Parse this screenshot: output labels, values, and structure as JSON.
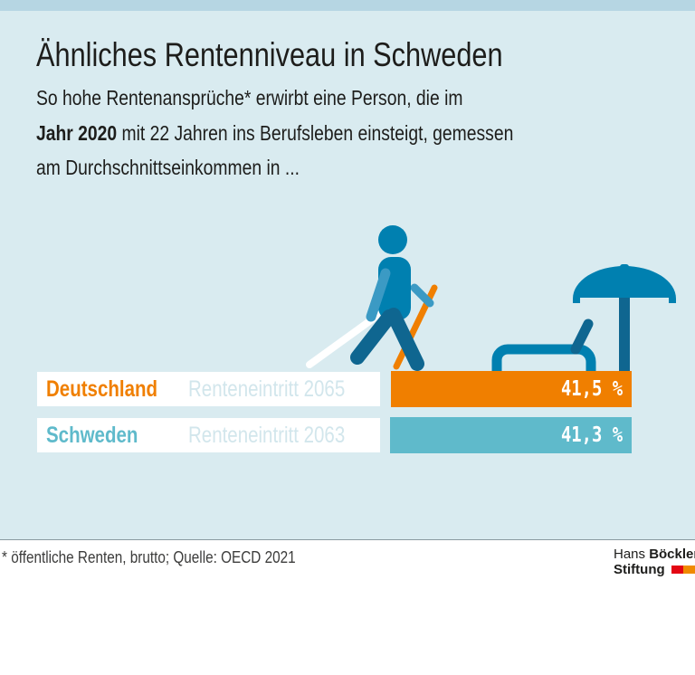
{
  "title": "Ähnliches Rentenniveau in Schweden",
  "subtitle": {
    "line1": "So hohe Rentenansprüche* erwirbt eine Person, die im",
    "line2_bold": "Jahr 2020",
    "line2_rest": " mit 22 Jahren ins Berufsleben einsteigt, gemessen",
    "line3": "am Durchschnittseinkommen in ..."
  },
  "chart_data": {
    "type": "bar",
    "orientation": "horizontal",
    "categories": [
      "Deutschland",
      "Schweden"
    ],
    "retirement_entry": [
      "Renteneintritt 2065",
      "Renteneintritt 2063"
    ],
    "values": [
      41.5,
      41.3
    ],
    "value_labels": [
      "41,5 %",
      "41,3 %"
    ],
    "unit": "%",
    "colors": [
      "#f07f00",
      "#5fbacb"
    ],
    "grid": false
  },
  "footnote": "* öffentliche Renten, brutto; Quelle: OECD 2021",
  "logo": {
    "line1_regular": "Hans ",
    "line1_bold": "Böckler",
    "line2": "Stiftung"
  },
  "colors": {
    "background": "#d9ebf0",
    "icon_blue": "#0080b0",
    "icon_dark": "#0f6690",
    "logo_red": "#e30613",
    "logo_orange": "#f08a00"
  }
}
